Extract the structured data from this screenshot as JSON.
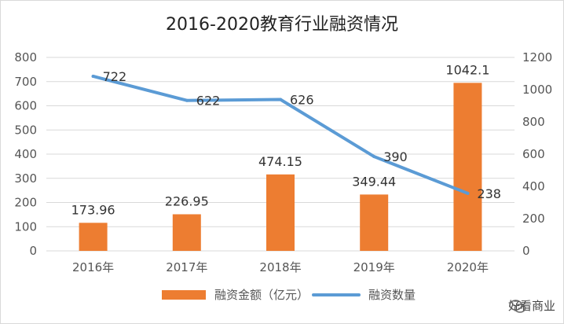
{
  "chart_data": {
    "type": "bar",
    "title": "2016-2020教育行业融资情况",
    "categories": [
      "2016年",
      "2017年",
      "2018年",
      "2019年",
      "2020年"
    ],
    "series": [
      {
        "name": "融资金额（亿元）",
        "type": "bar",
        "values": [
          173.96,
          226.95,
          474.15,
          349.44,
          1042.1
        ],
        "value_labels": [
          "173.96",
          "226.95",
          "474.15",
          "349.44",
          "1042.1"
        ],
        "axis": "right",
        "color": "#ED7D31"
      },
      {
        "name": "融资数量",
        "type": "line",
        "values": [
          722,
          622,
          626,
          390,
          238
        ],
        "value_labels": [
          "722",
          "622",
          "626",
          "390",
          "238"
        ],
        "axis": "left",
        "color": "#5B9BD5"
      }
    ],
    "left_axis": {
      "ticks": [
        "800",
        "700",
        "600",
        "500",
        "400",
        "300",
        "200",
        "100",
        "0"
      ],
      "range": [
        0,
        800
      ]
    },
    "right_axis": {
      "ticks": [
        "1200",
        "1000",
        "800",
        "600",
        "400",
        "200",
        "0"
      ],
      "range": [
        0,
        1200
      ]
    },
    "grid": true,
    "legend_position": "bottom"
  },
  "watermark": {
    "text": "好看商业",
    "icon": "wechat-icon"
  }
}
